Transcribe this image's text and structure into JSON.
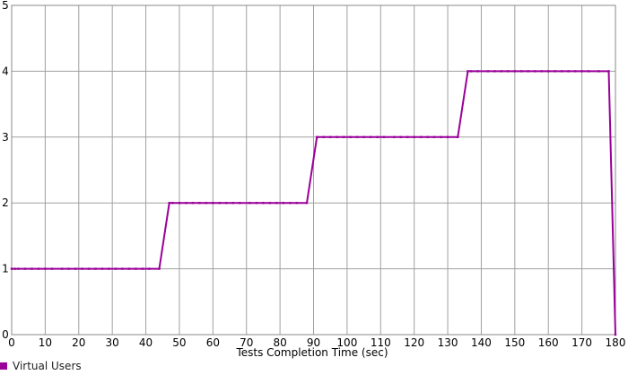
{
  "chart_data": {
    "type": "line",
    "xlabel": "Tests Completion Time (sec)",
    "ylabel": "",
    "xlim": [
      0,
      180
    ],
    "ylim": [
      0,
      5
    ],
    "x_ticks": [
      0,
      10,
      20,
      30,
      40,
      50,
      60,
      70,
      80,
      90,
      100,
      110,
      120,
      130,
      140,
      150,
      160,
      170,
      180
    ],
    "y_ticks": [
      0,
      1,
      2,
      3,
      4,
      5
    ],
    "grid": true,
    "legend_position": "bottom-left",
    "series": [
      {
        "name": "Virtual Users",
        "color": "#990099",
        "x": [
          0,
          1,
          2,
          4,
          6,
          8,
          10,
          12,
          15,
          17,
          19,
          21,
          23,
          25,
          27,
          29,
          31,
          33,
          35,
          37,
          39,
          41,
          44,
          47,
          48,
          50,
          52,
          54,
          56,
          58,
          60,
          62,
          64,
          66,
          68,
          71,
          73,
          75,
          77,
          79,
          81,
          83,
          85,
          88,
          91,
          93,
          95,
          97,
          99,
          101,
          103,
          105,
          107,
          109,
          111,
          114,
          116,
          118,
          120,
          122,
          124,
          126,
          128,
          130,
          133,
          136,
          137,
          139,
          142,
          144,
          146,
          148,
          150,
          152,
          154,
          156,
          158,
          160,
          162,
          164,
          166,
          168,
          170,
          172,
          175,
          178,
          180
        ],
        "values": [
          1,
          1,
          1,
          1,
          1,
          1,
          1,
          1,
          1,
          1,
          1,
          1,
          1,
          1,
          1,
          1,
          1,
          1,
          1,
          1,
          1,
          1,
          1,
          2,
          2,
          2,
          2,
          2,
          2,
          2,
          2,
          2,
          2,
          2,
          2,
          2,
          2,
          2,
          2,
          2,
          2,
          2,
          2,
          2,
          3,
          3,
          3,
          3,
          3,
          3,
          3,
          3,
          3,
          3,
          3,
          3,
          3,
          3,
          3,
          3,
          3,
          3,
          3,
          3,
          3,
          4,
          4,
          4,
          4,
          4,
          4,
          4,
          4,
          4,
          4,
          4,
          4,
          4,
          4,
          4,
          4,
          4,
          4,
          4,
          4,
          4,
          0
        ]
      }
    ]
  },
  "legend": {
    "label": "Virtual Users",
    "color": "#990099"
  }
}
